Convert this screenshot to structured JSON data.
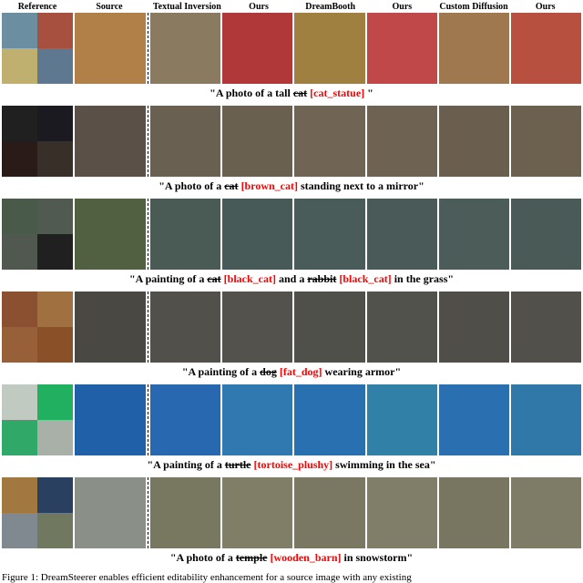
{
  "headers": [
    "Reference",
    "Source",
    "Textual Inversion",
    "Ours",
    "DreamBooth",
    "Ours",
    "Custom Diffusion",
    "Ours"
  ],
  "rows": [
    {
      "ref_colors": [
        "#6b8fa0",
        "#a85040",
        "#c0b070",
        "#5e7890"
      ],
      "src_color": "#b08048",
      "group_colors": [
        "#8a7a60",
        "#b03838",
        "#a08040",
        "#c04848",
        "#a07850",
        "#b85040"
      ],
      "caption_pre": "\"A photo of a tall ",
      "strike": "cat",
      "token": " [cat_statue]",
      "caption_post": " \""
    },
    {
      "ref_colors": [
        "#202020",
        "#1a1a20",
        "#2a1a18",
        "#383028"
      ],
      "src_color": "#5a5048",
      "group_colors": [
        "#6a6052",
        "#6a6050",
        "#706555",
        "#6e6252",
        "#6a5e4e",
        "#6c604f"
      ],
      "caption_pre": "\"A photo of a ",
      "strike": "cat",
      "token": " [brown_cat]",
      "caption_post": " standing next to a mirror\""
    },
    {
      "ref_colors": [
        "#4a5a4a",
        "#505a50",
        "#505850",
        "#202020"
      ],
      "src_color": "#506040",
      "group_colors": [
        "#4a5a55",
        "#485a58",
        "#4a5c5a",
        "#4a5a58",
        "#4c5c58",
        "#4a5b57"
      ],
      "caption_pre": "\"A painting of a ",
      "strike": "cat",
      "token": " [black_cat]",
      "caption_mid": " and a ",
      "strike2": "rabbit",
      "token2": " [black_cat]",
      "caption_post": " in the grass\""
    },
    {
      "ref_colors": [
        "#8a5030",
        "#a07040",
        "#986038",
        "#8a5028"
      ],
      "src_color": "#4a4842",
      "group_colors": [
        "#52504a",
        "#54524c",
        "#50504a",
        "#52524c",
        "#504e48",
        "#52504a"
      ],
      "caption_pre": "\"A painting of a ",
      "strike": "dog",
      "token": " [fat_dog]",
      "caption_post": " wearing armor\""
    },
    {
      "ref_colors": [
        "#c0cac0",
        "#20b060",
        "#30a868",
        "#a8b0a8"
      ],
      "src_color": "#2060a8",
      "group_colors": [
        "#2868b0",
        "#3078b0",
        "#2870b0",
        "#3080a8",
        "#2a70b0",
        "#3078a8"
      ],
      "caption_pre": "\"A painting of a ",
      "strike": "turtle",
      "token": " [tortoise_plushy]",
      "caption_post": " swimming in the sea\""
    },
    {
      "ref_colors": [
        "#a07840",
        "#2a4060",
        "#808890",
        "#707860"
      ],
      "src_color": "#8a9088",
      "group_colors": [
        "#787860",
        "#807e66",
        "#7a7862",
        "#807e68",
        "#787660",
        "#7e7c66"
      ],
      "caption_pre": "\"A photo of a ",
      "strike": "temple",
      "token": " [wooden_barn]",
      "caption_post": " in snowstorm\""
    }
  ],
  "figure_caption": "Figure 1: DreamSteerer enables efficient editability enhancement for a source image with any existing"
}
